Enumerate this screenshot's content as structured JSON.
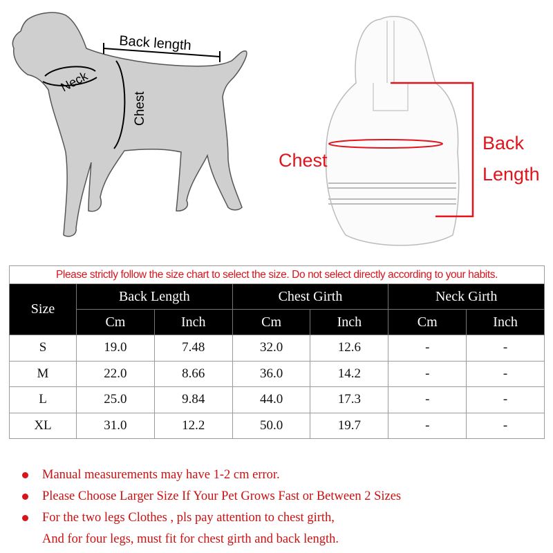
{
  "diagram_dog": {
    "labels": {
      "back_length": "Back length",
      "neck": "Neck",
      "chest": "Chest"
    }
  },
  "diagram_coat": {
    "labels": {
      "chest": "Chest",
      "back_length_line1": "Back",
      "back_length_line2": "Length"
    },
    "accent_color": "#e0141c"
  },
  "size_table": {
    "notice": "Please strictly follow the size chart to select the size. Do not select directly according to your habits.",
    "headers": {
      "size": "Size",
      "groups": [
        "Back Length",
        "Chest Girth",
        "Neck Girth"
      ],
      "units": [
        "Cm",
        "Inch",
        "Cm",
        "Inch",
        "Cm",
        "Inch"
      ]
    },
    "rows": [
      {
        "size": "S",
        "values": [
          "19.0",
          "7.48",
          "32.0",
          "12.6",
          "-",
          "-"
        ]
      },
      {
        "size": "M",
        "values": [
          "22.0",
          "8.66",
          "36.0",
          "14.2",
          "-",
          "-"
        ]
      },
      {
        "size": "L",
        "values": [
          "25.0",
          "9.84",
          "44.0",
          "17.3",
          "-",
          "-"
        ]
      },
      {
        "size": "XL",
        "values": [
          "31.0",
          "12.2",
          "50.0",
          "19.7",
          "-",
          "-"
        ]
      }
    ]
  },
  "notes": {
    "items": [
      "Manual measurements may have 1-2 cm error.",
      "Please Choose Larger Size If Your Pet Grows Fast or Between 2 Sizes",
      "For the two legs Clothes , pls pay attention to chest girth,"
    ],
    "continuation": "And for four legs, must fit for chest girth and back length.",
    "bullet_color": "#d8141c"
  }
}
